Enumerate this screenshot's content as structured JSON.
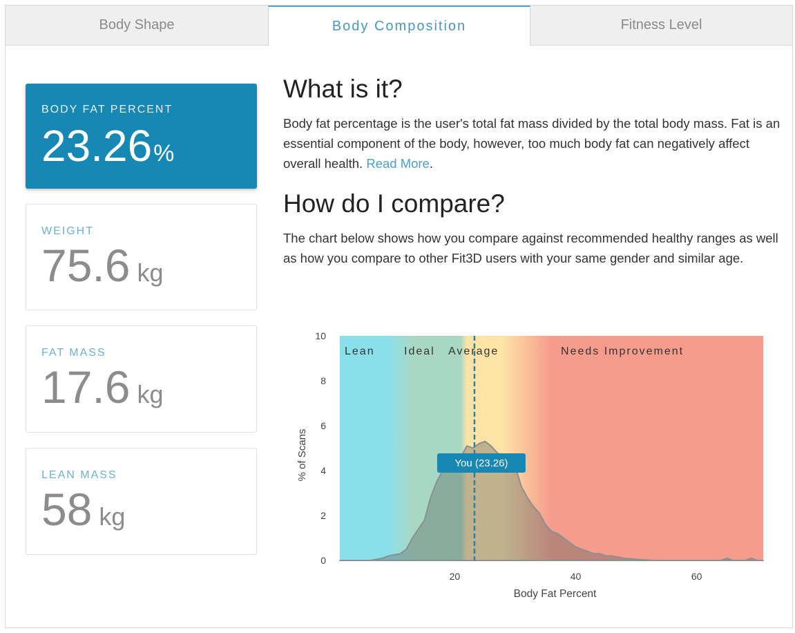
{
  "tabs": [
    {
      "label": "Body Shape",
      "active": false
    },
    {
      "label": "Body Composition",
      "active": true
    },
    {
      "label": "Fitness Level",
      "active": false
    }
  ],
  "metrics": {
    "body_fat": {
      "label": "BODY FAT PERCENT",
      "value": "23.26",
      "unit": "%"
    },
    "weight": {
      "label": "WEIGHT",
      "value": "75.6",
      "unit": "kg"
    },
    "fat_mass": {
      "label": "FAT MASS",
      "value": "17.6",
      "unit": "kg"
    },
    "lean_mass": {
      "label": "LEAN MASS",
      "value": "58",
      "unit": "kg"
    }
  },
  "what": {
    "title": "What is it?",
    "body": "Body fat percentage is the user's total fat mass divided by the total body mass. Fat is an essential component of the body, however, too much body fat can negatively affect overall health. ",
    "link": "Read More",
    "after_link": "."
  },
  "compare": {
    "title": "How do I compare?",
    "body": "The chart below shows how you compare against recommended healthy ranges as well as how you compare to other Fit3D users with your same gender and similar age."
  },
  "colors": {
    "accent": "#1787b3",
    "lean": "#8ae0e9",
    "ideal": "#a8d8c4",
    "average": "#fde3a6",
    "needs_improvement": "#f59c8c"
  },
  "chart_data": {
    "type": "area",
    "xlabel": "Body Fat Percent",
    "ylabel": "% of Scans",
    "xlim": [
      1,
      71
    ],
    "ylim": [
      0,
      10
    ],
    "xticks": [
      20,
      40,
      60
    ],
    "yticks": [
      0,
      2,
      4,
      6,
      8,
      10
    ],
    "zones": [
      {
        "name": "Lean",
        "from": 1,
        "to": 11
      },
      {
        "name": "Ideal",
        "from": 11,
        "to": 21
      },
      {
        "name": "Average",
        "from": 21,
        "to": 29
      },
      {
        "name": "Needs Improvement",
        "from": 29,
        "to": 71
      }
    ],
    "marker": {
      "label": "You (23.26)",
      "x": 23.26
    },
    "distribution": [
      [
        1,
        0
      ],
      [
        6,
        0
      ],
      [
        8,
        0.1
      ],
      [
        9,
        0.2
      ],
      [
        10,
        0.25
      ],
      [
        11,
        0.3
      ],
      [
        12,
        0.5
      ],
      [
        13,
        1.0
      ],
      [
        14,
        1.4
      ],
      [
        15,
        1.8
      ],
      [
        16,
        2.8
      ],
      [
        17,
        3.5
      ],
      [
        18,
        4.0
      ],
      [
        19,
        4.1
      ],
      [
        20,
        4.1
      ],
      [
        21,
        4.6
      ],
      [
        22,
        5.1
      ],
      [
        23,
        5.0
      ],
      [
        24,
        5.2
      ],
      [
        25,
        5.3
      ],
      [
        26,
        5.1
      ],
      [
        27,
        4.8
      ],
      [
        28,
        4.6
      ],
      [
        29,
        4.4
      ],
      [
        30,
        4.2
      ],
      [
        31,
        3.3
      ],
      [
        32,
        2.8
      ],
      [
        33,
        2.4
      ],
      [
        34,
        2.1
      ],
      [
        35,
        1.6
      ],
      [
        36,
        1.3
      ],
      [
        37,
        1.2
      ],
      [
        38,
        1.0
      ],
      [
        39,
        0.8
      ],
      [
        40,
        0.6
      ],
      [
        41,
        0.5
      ],
      [
        42,
        0.4
      ],
      [
        43,
        0.3
      ],
      [
        44,
        0.3
      ],
      [
        45,
        0.2
      ],
      [
        46,
        0.2
      ],
      [
        47,
        0.15
      ],
      [
        48,
        0.1
      ],
      [
        50,
        0.05
      ],
      [
        53,
        0
      ],
      [
        64,
        0
      ],
      [
        65,
        0.1
      ],
      [
        66,
        0
      ],
      [
        68,
        0
      ],
      [
        69,
        0.1
      ],
      [
        70,
        0
      ],
      [
        71,
        0
      ]
    ]
  }
}
